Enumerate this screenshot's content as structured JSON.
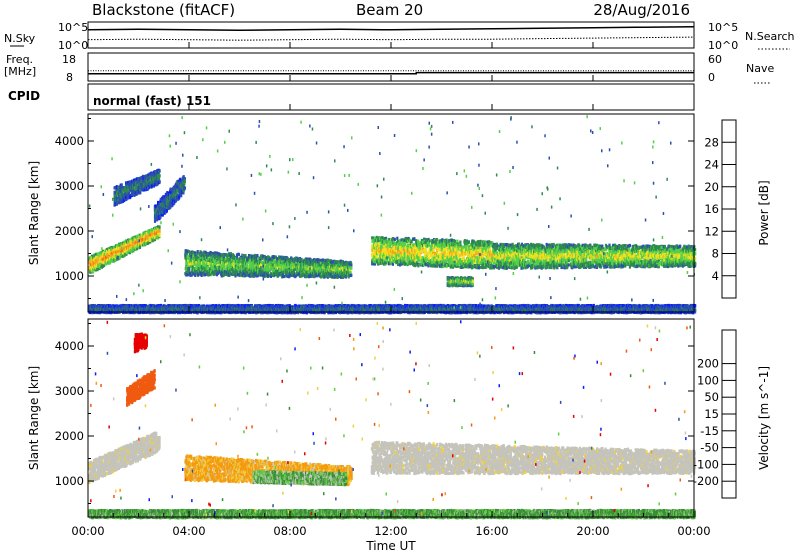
{
  "header": {
    "station": "Blackstone (fitACF)",
    "beam": "Beam 20",
    "date": "28/Aug/2016"
  },
  "aux_panels": {
    "nsky_label": "N.Sky",
    "nsearch_label": "N.Search",
    "noise_top_tick": "10^5",
    "noise_bottom_tick": "10^0",
    "freq_label_line1": "Freq.",
    "freq_label_line2": "[MHz]",
    "freq_tick_18": "18",
    "freq_tick_8": "8",
    "nave_label": "Nave",
    "nave_tick_60": "60",
    "nave_tick_0": "0",
    "cpid_label": "CPID",
    "cpid_value": "normal (fast) 151"
  },
  "colors": {
    "power_scale": [
      "#0a1dff",
      "#2c4fb0",
      "#2f8a4f",
      "#54d04a",
      "#f0e020",
      "#f5a020",
      "#f06010",
      "#e60000"
    ],
    "velocity_scale": [
      "#e60000",
      "#f05a10",
      "#f59a10",
      "#f0d040",
      "#c8c8c0",
      "#c8c8c0",
      "#60d040",
      "#3a8a3a",
      "#2c4fb0",
      "#0a1dff"
    ],
    "ground_scatter": "#c4c4bc"
  },
  "chart_data": [
    {
      "type": "heatmap",
      "panel": "power",
      "ylabel": "Slant Range [km]",
      "yticks": [
        "1000",
        "2000",
        "3000",
        "4000"
      ],
      "ylim": [
        200,
        4600
      ],
      "xlim": [
        0,
        24
      ],
      "colorbar_label": "Power [dB]",
      "colorbar_ticks": [
        "4",
        "8",
        "12",
        "16",
        "20",
        "24",
        "28"
      ],
      "zlim": [
        0,
        32
      ],
      "regions": [
        {
          "t": [
            0.0,
            2.8
          ],
          "r0": [
            1080,
            1900
          ],
          "r1": [
            1450,
            2150
          ],
          "power": 24
        },
        {
          "t": [
            1.0,
            2.8
          ],
          "r0": [
            2600,
            3100
          ],
          "r1": [
            3000,
            3400
          ],
          "power": 10
        },
        {
          "t": [
            2.6,
            3.8
          ],
          "r0": [
            2200,
            2900
          ],
          "r1": [
            2600,
            3300
          ],
          "power": 9
        },
        {
          "t": [
            3.8,
            10.4
          ],
          "r0": [
            1050,
            1000
          ],
          "r1": [
            1600,
            1350
          ],
          "power": 15
        },
        {
          "t": [
            11.2,
            16.0
          ],
          "r0": [
            1300,
            1200
          ],
          "r1": [
            1900,
            1800
          ],
          "power": 20
        },
        {
          "t": [
            16.0,
            24.0
          ],
          "r0": [
            1200,
            1250
          ],
          "r1": [
            1750,
            1700
          ],
          "power": 18
        },
        {
          "t": [
            14.2,
            15.2
          ],
          "r0": [
            820,
            820
          ],
          "r1": [
            1000,
            1000
          ],
          "power": 16
        },
        {
          "t": [
            0.0,
            24.0
          ],
          "r0": [
            220,
            220
          ],
          "r1": [
            380,
            380
          ],
          "power": 8
        }
      ]
    },
    {
      "type": "heatmap",
      "panel": "velocity",
      "ylabel": "Slant Range [km]",
      "yticks": [
        "1000",
        "2000",
        "3000",
        "4000"
      ],
      "ylim": [
        200,
        4600
      ],
      "xlim": [
        0,
        24
      ],
      "xticks": [
        "00:00",
        "04:00",
        "08:00",
        "12:00",
        "16:00",
        "20:00",
        "00:00"
      ],
      "xlabel": "Time UT",
      "colorbar_label": "Velocity [m s^-1]",
      "colorbar_ticks": [
        "-200",
        "-100",
        "-50",
        "-15",
        "15",
        "50",
        "100",
        "200"
      ],
      "zlim": [
        -250,
        250
      ],
      "regions": [
        {
          "t": [
            0.0,
            2.8
          ],
          "r0": [
            1000,
            1700
          ],
          "r1": [
            1450,
            2150
          ],
          "velocity": 0
        },
        {
          "t": [
            1.5,
            2.6
          ],
          "r0": [
            2700,
            3100
          ],
          "r1": [
            3100,
            3500
          ],
          "velocity": -120
        },
        {
          "t": [
            1.8,
            2.3
          ],
          "r0": [
            3900,
            4000
          ],
          "r1": [
            4300,
            4300
          ],
          "velocity": -200
        },
        {
          "t": [
            3.8,
            10.4
          ],
          "r0": [
            1050,
            950
          ],
          "r1": [
            1600,
            1350
          ],
          "velocity": -40
        },
        {
          "t": [
            6.5,
            10.2
          ],
          "r0": [
            1000,
            950
          ],
          "r1": [
            1250,
            1200
          ],
          "velocity": 30
        },
        {
          "t": [
            11.2,
            24.0
          ],
          "r0": [
            1200,
            1200
          ],
          "r1": [
            1900,
            1700
          ],
          "velocity": 0
        },
        {
          "t": [
            0.0,
            24.0
          ],
          "r0": [
            220,
            220
          ],
          "r1": [
            380,
            380
          ],
          "velocity": 40
        }
      ]
    },
    {
      "type": "line",
      "panel": "noise",
      "series": [
        {
          "name": "N.Sky",
          "values": [
            3.5,
            3.6,
            3.5,
            3.4,
            3.5,
            3.6,
            3.5,
            3.6,
            3.7,
            3.8,
            3.9,
            4.0,
            4.1
          ]
        },
        {
          "name": "N.Search",
          "values": [
            1.6,
            1.7,
            1.6,
            1.5,
            1.6,
            1.7,
            1.6,
            1.7,
            1.7,
            1.8,
            1.9,
            2.0,
            2.1
          ]
        }
      ],
      "x": [
        0,
        2,
        4,
        6,
        8,
        10,
        12,
        14,
        16,
        18,
        20,
        22,
        24
      ]
    },
    {
      "type": "line",
      "panel": "frequency",
      "series": [
        {
          "name": "Freq.",
          "values": [
            10.6,
            10.6,
            10.6,
            10.6,
            10.6,
            10.6,
            10.6,
            11.0,
            11.0,
            11.0,
            11.0,
            11.0
          ]
        },
        {
          "name": "Nave",
          "values": [
            22,
            22,
            22,
            22,
            22,
            22,
            22,
            22,
            22,
            22,
            22,
            22
          ]
        }
      ],
      "x": [
        0,
        2,
        4,
        6,
        8,
        10,
        12,
        13,
        16,
        18,
        20,
        24
      ]
    }
  ]
}
